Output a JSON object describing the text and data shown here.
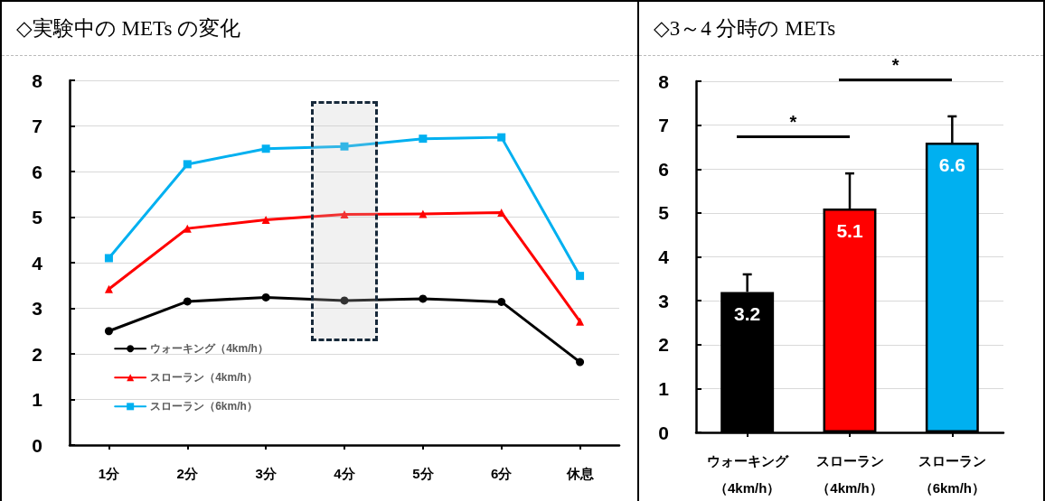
{
  "chart_data": [
    {
      "type": "line",
      "title": "◇実験中の METs の変化",
      "categories": [
        "1分",
        "2分",
        "3分",
        "4分",
        "5分",
        "6分",
        "休息"
      ],
      "ylim": [
        0,
        8
      ],
      "yticks": [
        0,
        1,
        2,
        3,
        4,
        5,
        6,
        7,
        8
      ],
      "grid": "y",
      "legend": "bottom left",
      "line_style": "solid",
      "series": [
        {
          "name": "ウォーキング（4km/h）",
          "color": "#000000",
          "marker": "circle",
          "values": [
            2.5,
            3.15,
            3.24,
            3.17,
            3.21,
            3.14,
            1.82
          ]
        },
        {
          "name": "スローラン（4km/h）",
          "color": "#ff0000",
          "marker": "triangle",
          "values": [
            3.42,
            4.75,
            4.94,
            5.06,
            5.07,
            5.1,
            2.71
          ]
        },
        {
          "name": "スローラン（6km/h）",
          "color": "#00b0f0",
          "marker": "square",
          "values": [
            4.1,
            6.16,
            6.5,
            6.55,
            6.72,
            6.75,
            3.71
          ]
        }
      ]
    },
    {
      "type": "bar",
      "title": "◇3～4 分時の METs",
      "categories": [
        "ウォーキング（4km/h）",
        "スローラン（4km/h）",
        "スローラン（6km/h）"
      ],
      "values": [
        3.2,
        5.1,
        6.6
      ],
      "colors": [
        "#000000",
        "#ff0000",
        "#00b0f0"
      ],
      "errors": [
        [
          3.2,
          3.6
        ],
        [
          5.1,
          5.9
        ],
        [
          6.6,
          7.2
        ]
      ],
      "data_labels": true,
      "ylim": [
        0,
        8
      ],
      "yticks": [
        0,
        1,
        2,
        3,
        4,
        5,
        6,
        7,
        8
      ],
      "grid": "y",
      "annotations": [
        "*",
        "*"
      ]
    }
  ]
}
